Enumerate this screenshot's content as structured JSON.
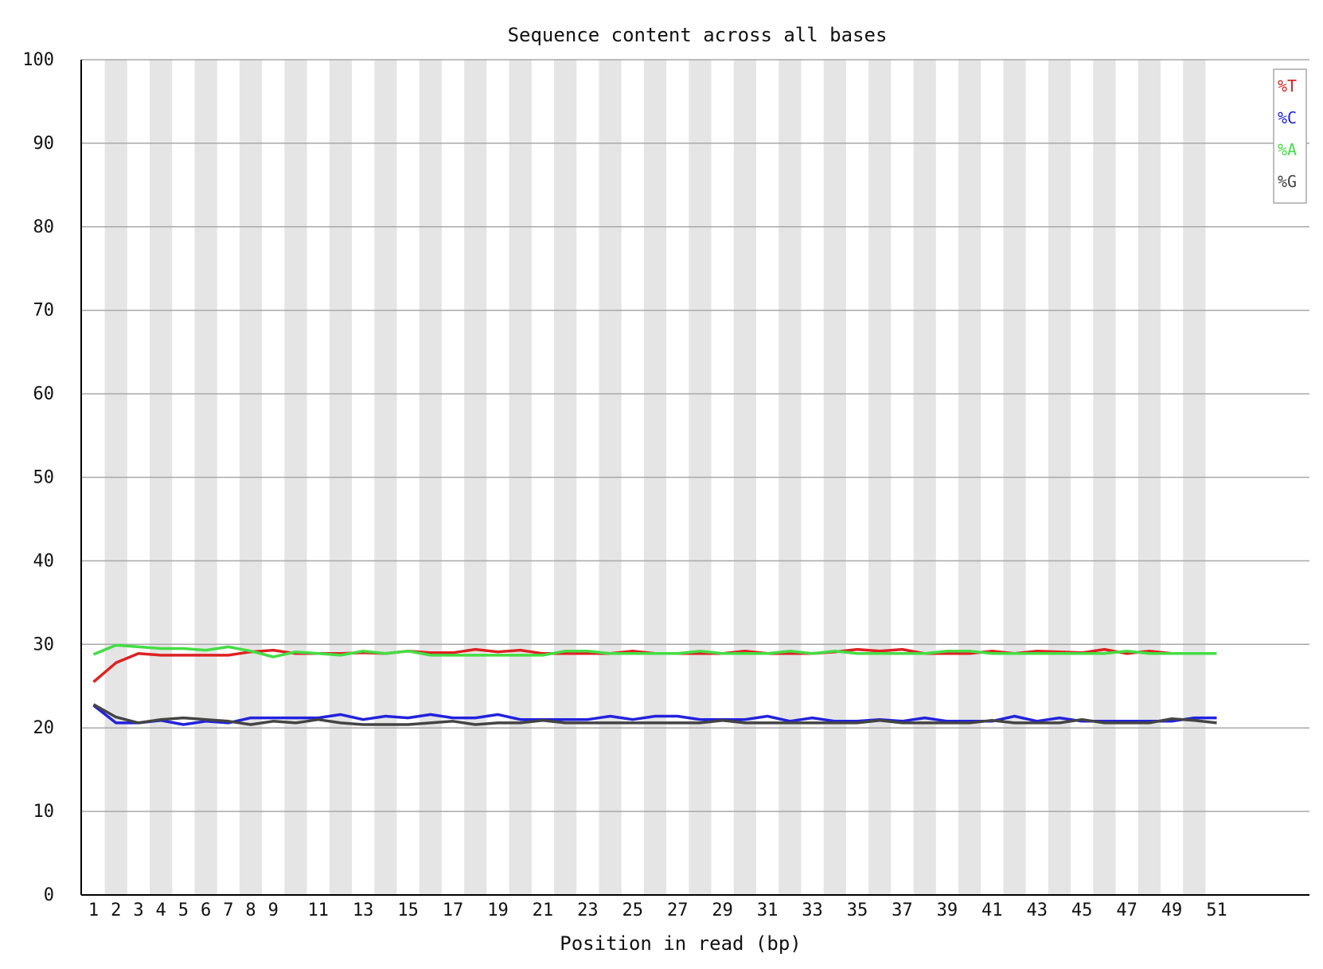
{
  "chart_data": {
    "type": "line",
    "title": "Sequence content across all bases",
    "xlabel": "Position in read (bp)",
    "ylabel": "",
    "ylim": [
      0,
      100
    ],
    "yticks": [
      "0",
      "10",
      "20",
      "30",
      "40",
      "50",
      "60",
      "70",
      "80",
      "90",
      "100"
    ],
    "x": [
      1,
      2,
      3,
      4,
      5,
      6,
      7,
      8,
      9,
      10,
      11,
      12,
      13,
      14,
      15,
      16,
      17,
      18,
      19,
      20,
      21,
      22,
      23,
      24,
      25,
      26,
      27,
      28,
      29,
      30,
      31,
      32,
      33,
      34,
      35,
      36,
      37,
      38,
      39,
      40,
      41,
      42,
      43,
      44,
      45,
      46,
      47,
      48,
      49,
      50,
      51
    ],
    "xticks": [
      "1",
      "2",
      "3",
      "4",
      "5",
      "6",
      "7",
      "8",
      "9",
      "11",
      "13",
      "15",
      "17",
      "19",
      "21",
      "23",
      "25",
      "27",
      "29",
      "31",
      "33",
      "35",
      "37",
      "39",
      "41",
      "43",
      "45",
      "47",
      "49",
      "51"
    ],
    "grid": true,
    "alternating_column_shading": true,
    "legend_position": "top-right",
    "series": [
      {
        "name": "%T",
        "color": "#dd2222",
        "values": [
          25.5,
          27.8,
          28.9,
          28.7,
          28.7,
          28.7,
          28.7,
          29.1,
          29.3,
          28.9,
          28.9,
          28.9,
          29.0,
          28.9,
          29.2,
          29.0,
          29.0,
          29.4,
          29.1,
          29.3,
          28.9,
          28.9,
          28.9,
          28.9,
          29.2,
          28.9,
          28.9,
          28.9,
          28.9,
          29.2,
          28.9,
          28.9,
          28.9,
          29.1,
          29.4,
          29.2,
          29.4,
          28.9,
          28.9,
          28.9,
          29.2,
          28.9,
          29.2,
          29.1,
          29.0,
          29.4,
          28.9,
          29.2,
          28.9,
          28.9,
          28.9
        ]
      },
      {
        "name": "%C",
        "color": "#2222dd",
        "values": [
          22.7,
          20.6,
          20.6,
          20.9,
          20.4,
          20.8,
          20.6,
          21.2,
          21.2,
          21.2,
          21.2,
          21.6,
          21.0,
          21.4,
          21.2,
          21.6,
          21.2,
          21.2,
          21.6,
          21.0,
          21.0,
          21.0,
          21.0,
          21.4,
          21.0,
          21.4,
          21.4,
          21.0,
          21.0,
          21.0,
          21.4,
          20.8,
          21.2,
          20.8,
          20.8,
          21.0,
          20.8,
          21.2,
          20.8,
          20.8,
          20.8,
          21.4,
          20.8,
          21.2,
          20.8,
          20.8,
          20.8,
          20.8,
          20.8,
          21.2,
          21.2
        ]
      },
      {
        "name": "%A",
        "color": "#44dd44",
        "values": [
          28.8,
          29.9,
          29.7,
          29.5,
          29.5,
          29.3,
          29.7,
          29.2,
          28.5,
          29.1,
          28.9,
          28.7,
          29.2,
          28.9,
          29.2,
          28.7,
          28.7,
          28.7,
          28.7,
          28.7,
          28.7,
          29.2,
          29.2,
          28.9,
          28.9,
          28.9,
          28.9,
          29.2,
          28.9,
          28.9,
          28.9,
          29.2,
          28.9,
          29.2,
          28.9,
          28.9,
          28.9,
          28.9,
          29.2,
          29.2,
          28.9,
          28.9,
          28.9,
          28.9,
          28.9,
          28.9,
          29.2,
          28.9,
          28.9,
          28.9,
          28.9
        ]
      },
      {
        "name": "%G",
        "color": "#444444",
        "values": [
          22.8,
          21.3,
          20.6,
          21.0,
          21.2,
          21.0,
          20.8,
          20.4,
          20.8,
          20.6,
          21.0,
          20.6,
          20.4,
          20.4,
          20.4,
          20.6,
          20.8,
          20.4,
          20.6,
          20.6,
          20.9,
          20.6,
          20.6,
          20.6,
          20.6,
          20.6,
          20.6,
          20.6,
          20.9,
          20.6,
          20.6,
          20.6,
          20.6,
          20.6,
          20.6,
          20.9,
          20.6,
          20.6,
          20.6,
          20.6,
          20.9,
          20.6,
          20.6,
          20.6,
          21.0,
          20.6,
          20.6,
          20.6,
          21.1,
          20.9,
          20.6
        ]
      }
    ]
  }
}
